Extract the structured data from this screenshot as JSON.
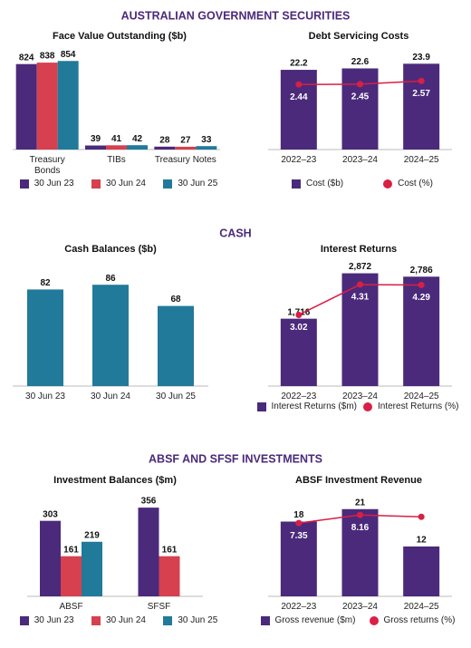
{
  "headings": [
    "AUSTRALIAN GOVERNMENT SECURITIES",
    "CASH",
    "ABSF AND SFSF INVESTMENTS"
  ],
  "chart_data": [
    {
      "type": "bar",
      "title": "Face Value Outstanding ($b)",
      "categories": [
        "Treasury Bonds",
        "TIBs",
        "Treasury Notes"
      ],
      "series": [
        {
          "name": "30 Jun 23",
          "color": "#4b2a7b",
          "values": [
            824,
            39,
            28
          ]
        },
        {
          "name": "30 Jun 24",
          "color": "#d6404f",
          "values": [
            838,
            41,
            27
          ]
        },
        {
          "name": "30 Jun 25",
          "color": "#217a9a",
          "values": [
            854,
            42,
            33
          ]
        }
      ],
      "ylim": [
        0,
        900
      ]
    },
    {
      "type": "combo",
      "title": "Debt Servicing Costs",
      "categories": [
        "2022–23",
        "2023–24",
        "2024–25"
      ],
      "series": [
        {
          "name": "Cost ($b)",
          "type": "bar",
          "color": "#4b2a7b",
          "values": [
            22.2,
            22.6,
            23.9
          ]
        },
        {
          "name": "Cost (%)",
          "type": "line",
          "axis": "y2",
          "color": "#d91f45",
          "values": [
            2.44,
            2.45,
            2.57
          ]
        }
      ],
      "ylim": [
        0,
        26
      ],
      "y2lim": [
        0,
        3.5
      ]
    },
    {
      "type": "bar",
      "title": "Cash Balances ($b)",
      "categories": [
        "30 Jun 23",
        "30 Jun 24",
        "30 Jun 25"
      ],
      "values": [
        82,
        86,
        68
      ],
      "color": "#217a9a",
      "ylim": [
        0,
        100
      ]
    },
    {
      "type": "combo",
      "title": "Interest Returns",
      "categories": [
        "2022–23",
        "2023–24",
        "2024–25"
      ],
      "series": [
        {
          "name": "Interest Returns ($m)",
          "type": "bar",
          "color": "#4b2a7b",
          "values": [
            1716,
            2872,
            2786
          ],
          "value_labels": [
            "1,716",
            "2,872",
            "2,786"
          ]
        },
        {
          "name": "Interest Returns (%)",
          "type": "line",
          "axis": "y2",
          "color": "#d91f45",
          "values": [
            3.02,
            4.31,
            4.29
          ]
        }
      ],
      "ylim": [
        0,
        3000
      ],
      "y2lim": [
        0,
        5
      ]
    },
    {
      "type": "bar",
      "title": "Investment Balances ($m)",
      "categories": [
        "ABSF",
        "SFSF"
      ],
      "series": [
        {
          "name": "30 Jun 23",
          "color": "#4b2a7b",
          "values": [
            303,
            356
          ]
        },
        {
          "name": "30 Jun 24",
          "color": "#d6404f",
          "values": [
            161,
            161
          ]
        },
        {
          "name": "30 Jun 25",
          "color": "#217a9a",
          "values": [
            219,
            null
          ]
        }
      ],
      "ylim": [
        0,
        400
      ]
    },
    {
      "type": "combo",
      "title": "ABSF Investment Revenue",
      "categories": [
        "2022–23",
        "2023–24",
        "2024–25"
      ],
      "series": [
        {
          "name": "Gross revenue ($m)",
          "type": "bar",
          "color": "#4b2a7b",
          "values": [
            18,
            21,
            12
          ]
        },
        {
          "name": "Gross returns (%)",
          "type": "line",
          "axis": "y2",
          "color": "#d91f45",
          "values": [
            7.35,
            8.16,
            7.98
          ]
        }
      ],
      "ylim": [
        0,
        24
      ],
      "y2lim": [
        0,
        10
      ]
    }
  ]
}
